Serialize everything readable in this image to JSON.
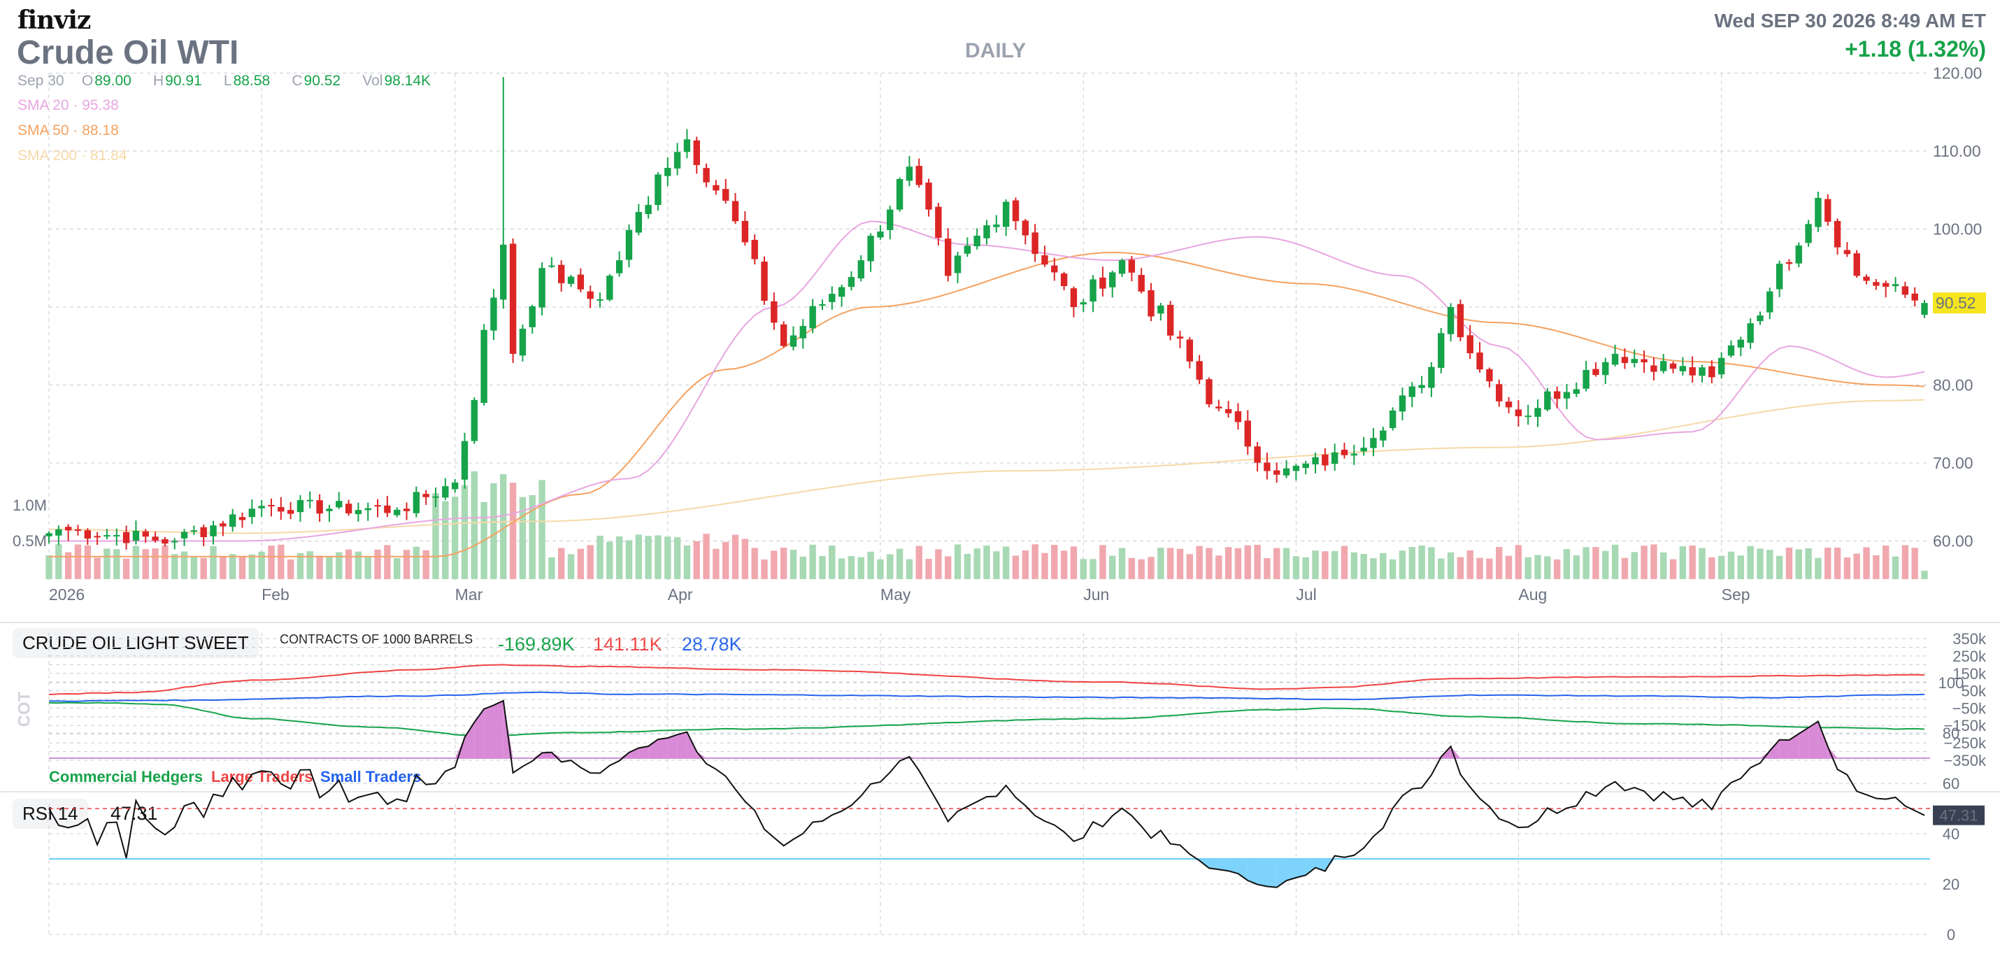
{
  "header": {
    "logo": "finviz",
    "title": "Crude Oil WTI",
    "period": "DAILY",
    "datetime": "Wed SEP 30 2026 8:49 AM ET",
    "change": "+1.18 (1.32%)"
  },
  "ohlc": {
    "date": "Sep 30",
    "open_label": "O",
    "open": "89.00",
    "high_label": "H",
    "high": "90.91",
    "low_label": "L",
    "low": "88.58",
    "close_label": "C",
    "close": "90.52",
    "vol_label": "Vol",
    "vol": "98.14K"
  },
  "sma": [
    {
      "label": "SMA 20",
      "value": "95.38",
      "color": "#e8a6e0"
    },
    {
      "label": "SMA 50",
      "value": "88.18",
      "color": "#f4a261"
    },
    {
      "label": "SMA 200",
      "value": "81.84",
      "color": "#f6d9a8"
    }
  ],
  "colors": {
    "up": "#16a34a",
    "down": "#dc2626",
    "up_vol": "#a7d9b4",
    "down_vol": "#f0a8ae",
    "last_price_bg": "#f5e51f"
  },
  "chart_data": [
    {
      "type": "candlestick",
      "title": "Crude Oil WTI",
      "last_price": "90.52",
      "y_ticks": [
        "120.00",
        "110.00",
        "100.00",
        "80.00",
        "70.00",
        "60.00"
      ],
      "ylim": [
        55,
        120
      ],
      "x_ticks": [
        "2026",
        "Feb",
        "Mar",
        "Apr",
        "May",
        "Jun",
        "Jul",
        "Aug",
        "Sep"
      ],
      "volume_ticks": [
        "1.0M",
        "0.5M"
      ],
      "anchors": [
        {
          "x": "Jan 2",
          "close": 61.5
        },
        {
          "x": "Jan 20",
          "close": 60.0
        },
        {
          "x": "Feb 2",
          "close": 64.5
        },
        {
          "x": "Feb 20",
          "close": 64.0
        },
        {
          "x": "Mar 2",
          "close": 67.5
        },
        {
          "x": "Mar 9",
          "close": 98.0
        },
        {
          "x": "Mar 10",
          "close": 84.0
        },
        {
          "x": "Mar 13",
          "close": 95.0
        },
        {
          "x": "Mar 23",
          "close": 91.0
        },
        {
          "x": "Mar 31",
          "close": 107.0
        },
        {
          "x": "Apr 3",
          "close": 111.5
        },
        {
          "x": "Apr 10",
          "close": 101.0
        },
        {
          "x": "Apr 17",
          "close": 85.0
        },
        {
          "x": "Apr 29",
          "close": 96.0
        },
        {
          "x": "May 6",
          "close": 108.0
        },
        {
          "x": "May 12",
          "close": 94.0
        },
        {
          "x": "May 20",
          "close": 103.5
        },
        {
          "x": "May 29",
          "close": 90.0
        },
        {
          "x": "Jun 5",
          "close": 96.0
        },
        {
          "x": "Jun 19",
          "close": 77.0
        },
        {
          "x": "Jun 29",
          "close": 68.5
        },
        {
          "x": "Jul 8",
          "close": 71.0
        },
        {
          "x": "Jul 20",
          "close": 80.0
        },
        {
          "x": "Jul 23",
          "close": 90.0
        },
        {
          "x": "Jul 28",
          "close": 82.0
        },
        {
          "x": "Aug 3",
          "close": 76.0
        },
        {
          "x": "Aug 17",
          "close": 84.0
        },
        {
          "x": "Aug 31",
          "close": 81.0
        },
        {
          "x": "Sep 8",
          "close": 92.0
        },
        {
          "x": "Sep 15",
          "close": 104.0
        },
        {
          "x": "Sep 21",
          "close": 94.0
        },
        {
          "x": "Sep 30",
          "close": 90.52
        }
      ],
      "sma20_anchors": [
        [
          0,
          60
        ],
        [
          20,
          60
        ],
        [
          45,
          63
        ],
        [
          60,
          68
        ],
        [
          75,
          90
        ],
        [
          85,
          101
        ],
        [
          95,
          98
        ],
        [
          110,
          96
        ],
        [
          125,
          99
        ],
        [
          140,
          94
        ],
        [
          150,
          85
        ],
        [
          160,
          73
        ],
        [
          170,
          74
        ],
        [
          180,
          85
        ],
        [
          190,
          81
        ],
        [
          200,
          83
        ],
        [
          210,
          88
        ],
        [
          220,
          96
        ],
        [
          230,
          95
        ]
      ],
      "sma50_anchors": [
        [
          0,
          58
        ],
        [
          40,
          58
        ],
        [
          55,
          66
        ],
        [
          70,
          82
        ],
        [
          85,
          90
        ],
        [
          110,
          97
        ],
        [
          130,
          93
        ],
        [
          150,
          88
        ],
        [
          170,
          83
        ],
        [
          190,
          80
        ],
        [
          205,
          79
        ],
        [
          215,
          85
        ],
        [
          230,
          88.18
        ]
      ],
      "sma200_anchors": [
        [
          0,
          61.5
        ],
        [
          20,
          61
        ],
        [
          50,
          62.5
        ],
        [
          100,
          69
        ],
        [
          150,
          72
        ],
        [
          190,
          78
        ],
        [
          230,
          81.84
        ]
      ]
    },
    {
      "type": "line",
      "title": "CRUDE OIL LIGHT SWEET",
      "subtitle": "CONTRACTS OF 1000 BARRELS",
      "y_ticks": [
        "350k",
        "250k",
        "150k",
        "50k",
        "−50k",
        "−150k",
        "−250k",
        "−350k"
      ],
      "ylim": [
        -350000,
        350000
      ],
      "side_label": "COT",
      "series": [
        {
          "name": "Commercial Hedgers",
          "last": "-169.89K",
          "color": "#16a34a",
          "anchors": [
            [
              0,
              -20
            ],
            [
              8,
              -20
            ],
            [
              14,
              -30
            ],
            [
              25,
              -110
            ],
            [
              40,
              -160
            ],
            [
              53,
              -210
            ],
            [
              65,
              -190
            ],
            [
              85,
              -170
            ],
            [
              130,
              -110
            ],
            [
              150,
              -60
            ],
            [
              158,
              -50
            ],
            [
              175,
              -100
            ],
            [
              195,
              -140
            ],
            [
              230,
              -170
            ]
          ]
        },
        {
          "name": "Large Traders",
          "last": "141.11K",
          "color": "#ef4444",
          "anchors": [
            [
              0,
              30
            ],
            [
              10,
              40
            ],
            [
              25,
              110
            ],
            [
              45,
              170
            ],
            [
              55,
              200
            ],
            [
              65,
              190
            ],
            [
              90,
              170
            ],
            [
              130,
              100
            ],
            [
              150,
              60
            ],
            [
              158,
              70
            ],
            [
              172,
              120
            ],
            [
              195,
              130
            ],
            [
              230,
              141
            ]
          ]
        },
        {
          "name": "Small Traders",
          "last": "28.78K",
          "color": "#2563eb",
          "anchors": [
            [
              0,
              -10
            ],
            [
              15,
              -5
            ],
            [
              45,
              20
            ],
            [
              60,
              40
            ],
            [
              70,
              30
            ],
            [
              140,
              10
            ],
            [
              160,
              0
            ],
            [
              175,
              25
            ],
            [
              195,
              20
            ],
            [
              210,
              10
            ],
            [
              230,
              29
            ]
          ]
        }
      ]
    },
    {
      "type": "line",
      "title": "RSI 14",
      "last": "47.31",
      "y_ticks": [
        "100",
        "80",
        "60",
        "40",
        "20",
        "0"
      ],
      "ylim": [
        0,
        100
      ],
      "levels": [
        70,
        50,
        30
      ]
    }
  ],
  "cot": {
    "title": "CRUDE OIL LIGHT SWEET",
    "subtitle": "CONTRACTS OF 1000 BARRELS",
    "side_label": "COT",
    "values": [
      "-169.89K",
      "141.11K",
      "28.78K"
    ],
    "legend": [
      "Commercial Hedgers",
      "Large Traders",
      "Small Traders"
    ]
  },
  "rsi": {
    "title": "RSI 14",
    "value": "47.31"
  }
}
